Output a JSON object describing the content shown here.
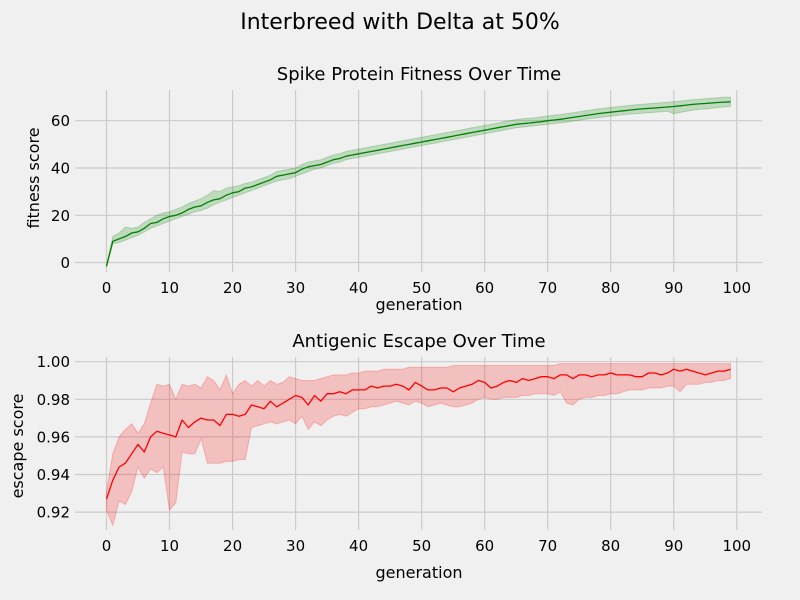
{
  "figure": {
    "title": "Interbreed with Delta at 50%",
    "background": "#f0f0f0"
  },
  "chart_data": [
    {
      "type": "line",
      "title": "Spike Protein Fitness Over Time",
      "xlabel": "generation",
      "ylabel": "fitness score",
      "xlim": [
        -5,
        104
      ],
      "ylim": [
        -4,
        73
      ],
      "xticks": [
        0,
        10,
        20,
        30,
        40,
        50,
        60,
        70,
        80,
        90,
        100
      ],
      "yticks": [
        0,
        20,
        40,
        60
      ],
      "ytick_labels": [
        "0",
        "20",
        "40",
        "60"
      ],
      "grid": true,
      "line_color": "#008000",
      "band_color": "#008000",
      "x": [
        0,
        1,
        2,
        3,
        4,
        5,
        6,
        7,
        8,
        9,
        10,
        11,
        12,
        13,
        14,
        15,
        16,
        17,
        18,
        19,
        20,
        21,
        22,
        23,
        24,
        25,
        26,
        27,
        28,
        29,
        30,
        31,
        32,
        33,
        34,
        35,
        36,
        37,
        38,
        39,
        40,
        41,
        42,
        43,
        44,
        45,
        46,
        47,
        48,
        49,
        50,
        51,
        52,
        53,
        54,
        55,
        56,
        57,
        58,
        59,
        60,
        61,
        62,
        63,
        64,
        65,
        66,
        67,
        68,
        69,
        70,
        71,
        72,
        73,
        74,
        75,
        76,
        77,
        78,
        79,
        80,
        81,
        82,
        83,
        84,
        85,
        86,
        87,
        88,
        89,
        90,
        91,
        92,
        93,
        94,
        95,
        96,
        97,
        98,
        99
      ],
      "series": [
        {
          "values": [
            -1.5,
            9,
            10,
            11,
            12.5,
            13,
            14.5,
            16.5,
            17,
            18.5,
            19.5,
            20,
            21,
            22.5,
            23.5,
            24,
            25.5,
            26.5,
            27,
            28.5,
            29.5,
            30,
            31.5,
            32,
            33,
            34,
            35,
            36.5,
            37,
            37.5,
            38,
            39.5,
            40.5,
            41,
            41.5,
            42.5,
            43.5,
            44,
            45,
            45.5,
            46,
            46.5,
            47,
            47.5,
            48,
            48.5,
            49,
            49.5,
            50,
            50.5,
            51,
            51.5,
            52,
            52.5,
            53,
            53.5,
            54,
            54.5,
            55,
            55.5,
            56,
            56.5,
            57,
            57.5,
            58,
            58.5,
            58.8,
            59,
            59.3,
            59.6,
            60,
            60.3,
            60.6,
            61,
            61.4,
            61.8,
            62.2,
            62.6,
            63,
            63.3,
            63.6,
            63.9,
            64.2,
            64.5,
            64.8,
            65,
            65.2,
            65.4,
            65.6,
            65.8,
            66,
            66.3,
            66.6,
            66.9,
            67.1,
            67.3,
            67.5,
            67.7,
            67.9,
            68
          ],
          "lower": [
            -2,
            8,
            8.5,
            9.5,
            10.5,
            11.5,
            13,
            14.5,
            15.5,
            16.5,
            17.5,
            18.5,
            19.5,
            20.5,
            21.5,
            22,
            23,
            24.5,
            25.5,
            26.5,
            27.5,
            28.5,
            29.5,
            30.5,
            31.5,
            32.5,
            33.5,
            34.5,
            35,
            35.5,
            36.5,
            37.5,
            38.5,
            39.5,
            40,
            41,
            42,
            42.5,
            43.5,
            44,
            44.5,
            45,
            45.5,
            46,
            46.5,
            47,
            47.5,
            48,
            48.5,
            49,
            49.5,
            50,
            50.5,
            51,
            51.5,
            52,
            52.5,
            53,
            53.5,
            54,
            54.5,
            55,
            55.5,
            56,
            56.5,
            57,
            57.3,
            57.6,
            57.9,
            58.2,
            58.5,
            58.8,
            59.1,
            59.4,
            59.8,
            60.2,
            60.6,
            61,
            61.3,
            61.6,
            61.9,
            62.2,
            62.5,
            62.8,
            63,
            63.2,
            63.4,
            63.6,
            63.8,
            64,
            63,
            63.5,
            64,
            64.5,
            64.8,
            65,
            65.3,
            65.6,
            65.8,
            66
          ],
          "upper": [
            -1,
            11,
            12.5,
            15,
            14.5,
            15,
            17,
            18.5,
            20,
            21,
            21.5,
            22.5,
            23.5,
            25,
            26,
            27,
            28.5,
            30.5,
            30,
            31.5,
            32,
            32.5,
            33.5,
            34,
            35,
            36,
            37,
            38.5,
            39,
            39.5,
            40,
            41.5,
            42.5,
            43,
            43.5,
            44.5,
            45.5,
            46,
            47,
            47.5,
            48,
            48.5,
            49,
            49.5,
            50,
            50.5,
            51,
            51.5,
            52,
            52.5,
            53,
            53.5,
            54,
            54.5,
            55,
            55.5,
            56,
            56.5,
            57,
            57.5,
            58,
            58.5,
            59,
            59.5,
            60,
            60.5,
            60.8,
            61,
            61.3,
            61.6,
            62,
            62.3,
            62.6,
            63,
            63.4,
            63.8,
            64.2,
            64.6,
            65,
            65.3,
            65.6,
            65.9,
            66.2,
            66.5,
            66.8,
            67,
            67.2,
            67.4,
            67.6,
            67.8,
            68,
            68.3,
            68.6,
            68.9,
            69.1,
            69.3,
            69.5,
            69.7,
            69.9,
            70
          ]
        }
      ]
    },
    {
      "type": "line",
      "title": "Antigenic Escape Over Time",
      "xlabel": "generation",
      "ylabel": "escape score",
      "xlim": [
        -5,
        104
      ],
      "ylim": [
        0.9105,
        1.0025
      ],
      "xticks": [
        0,
        10,
        20,
        30,
        40,
        50,
        60,
        70,
        80,
        90,
        100
      ],
      "yticks": [
        0.92,
        0.94,
        0.96,
        0.98,
        1.0
      ],
      "ytick_labels": [
        "0.92",
        "0.94",
        "0.96",
        "0.98",
        "1.00"
      ],
      "grid": true,
      "line_color": "#ff0000",
      "band_color": "#ff0000",
      "x": [
        0,
        1,
        2,
        3,
        4,
        5,
        6,
        7,
        8,
        9,
        10,
        11,
        12,
        13,
        14,
        15,
        16,
        17,
        18,
        19,
        20,
        21,
        22,
        23,
        24,
        25,
        26,
        27,
        28,
        29,
        30,
        31,
        32,
        33,
        34,
        35,
        36,
        37,
        38,
        39,
        40,
        41,
        42,
        43,
        44,
        45,
        46,
        47,
        48,
        49,
        50,
        51,
        52,
        53,
        54,
        55,
        56,
        57,
        58,
        59,
        60,
        61,
        62,
        63,
        64,
        65,
        66,
        67,
        68,
        69,
        70,
        71,
        72,
        73,
        74,
        75,
        76,
        77,
        78,
        79,
        80,
        81,
        82,
        83,
        84,
        85,
        86,
        87,
        88,
        89,
        90,
        91,
        92,
        93,
        94,
        95,
        96,
        97,
        98,
        99
      ],
      "series": [
        {
          "values": [
            0.927,
            0.937,
            0.944,
            0.946,
            0.951,
            0.956,
            0.952,
            0.96,
            0.963,
            0.962,
            0.961,
            0.96,
            0.969,
            0.965,
            0.968,
            0.97,
            0.969,
            0.969,
            0.966,
            0.972,
            0.972,
            0.971,
            0.972,
            0.977,
            0.976,
            0.975,
            0.979,
            0.976,
            0.978,
            0.98,
            0.982,
            0.981,
            0.977,
            0.982,
            0.979,
            0.983,
            0.983,
            0.984,
            0.983,
            0.985,
            0.985,
            0.985,
            0.987,
            0.986,
            0.987,
            0.987,
            0.988,
            0.987,
            0.985,
            0.989,
            0.987,
            0.985,
            0.985,
            0.986,
            0.986,
            0.984,
            0.986,
            0.987,
            0.988,
            0.99,
            0.989,
            0.986,
            0.987,
            0.989,
            0.99,
            0.989,
            0.991,
            0.99,
            0.991,
            0.992,
            0.992,
            0.991,
            0.993,
            0.993,
            0.991,
            0.993,
            0.993,
            0.992,
            0.993,
            0.993,
            0.994,
            0.993,
            0.993,
            0.993,
            0.992,
            0.992,
            0.994,
            0.994,
            0.993,
            0.994,
            0.996,
            0.995,
            0.996,
            0.995,
            0.994,
            0.993,
            0.994,
            0.995,
            0.995,
            0.996
          ],
          "lower": [
            0.921,
            0.913,
            0.926,
            0.924,
            0.931,
            0.944,
            0.938,
            0.943,
            0.941,
            0.944,
            0.921,
            0.925,
            0.952,
            0.951,
            0.951,
            0.959,
            0.946,
            0.946,
            0.946,
            0.947,
            0.947,
            0.948,
            0.948,
            0.965,
            0.966,
            0.967,
            0.968,
            0.967,
            0.968,
            0.969,
            0.967,
            0.971,
            0.964,
            0.968,
            0.966,
            0.969,
            0.971,
            0.972,
            0.971,
            0.973,
            0.975,
            0.975,
            0.976,
            0.976,
            0.977,
            0.978,
            0.979,
            0.978,
            0.977,
            0.979,
            0.978,
            0.976,
            0.977,
            0.978,
            0.977,
            0.976,
            0.976,
            0.977,
            0.978,
            0.98,
            0.981,
            0.98,
            0.98,
            0.981,
            0.981,
            0.981,
            0.982,
            0.982,
            0.983,
            0.983,
            0.983,
            0.982,
            0.984,
            0.978,
            0.977,
            0.98,
            0.981,
            0.981,
            0.982,
            0.982,
            0.983,
            0.983,
            0.984,
            0.985,
            0.985,
            0.985,
            0.986,
            0.986,
            0.986,
            0.987,
            0.987,
            0.984,
            0.988,
            0.988,
            0.988,
            0.989,
            0.989,
            0.99,
            0.99,
            0.991
          ],
          "upper": [
            0.931,
            0.951,
            0.96,
            0.964,
            0.967,
            0.962,
            0.967,
            0.978,
            0.988,
            0.987,
            0.988,
            0.98,
            0.988,
            0.987,
            0.988,
            0.986,
            0.992,
            0.99,
            0.985,
            0.993,
            0.983,
            0.988,
            0.99,
            0.987,
            0.99,
            0.987,
            0.99,
            0.988,
            0.989,
            0.992,
            0.991,
            0.99,
            0.99,
            0.99,
            0.991,
            0.992,
            0.993,
            0.993,
            0.993,
            0.994,
            0.994,
            0.995,
            0.995,
            0.995,
            0.996,
            0.996,
            0.996,
            0.996,
            0.997,
            0.997,
            0.997,
            0.997,
            0.997,
            0.997,
            0.997,
            0.998,
            0.998,
            0.998,
            0.998,
            0.998,
            0.998,
            0.998,
            0.998,
            0.998,
            0.998,
            0.998,
            0.998,
            0.998,
            0.998,
            0.998,
            0.998,
            0.998,
            0.999,
            0.999,
            0.999,
            0.999,
            0.999,
            0.999,
            0.999,
            0.999,
            0.999,
            0.999,
            0.999,
            0.999,
            0.999,
            0.999,
            0.999,
            0.999,
            0.999,
            0.999,
            0.999,
            0.999,
            0.999,
            0.999,
            0.999,
            0.999,
            0.999,
            0.999,
            0.999,
            0.999
          ]
        }
      ]
    }
  ]
}
